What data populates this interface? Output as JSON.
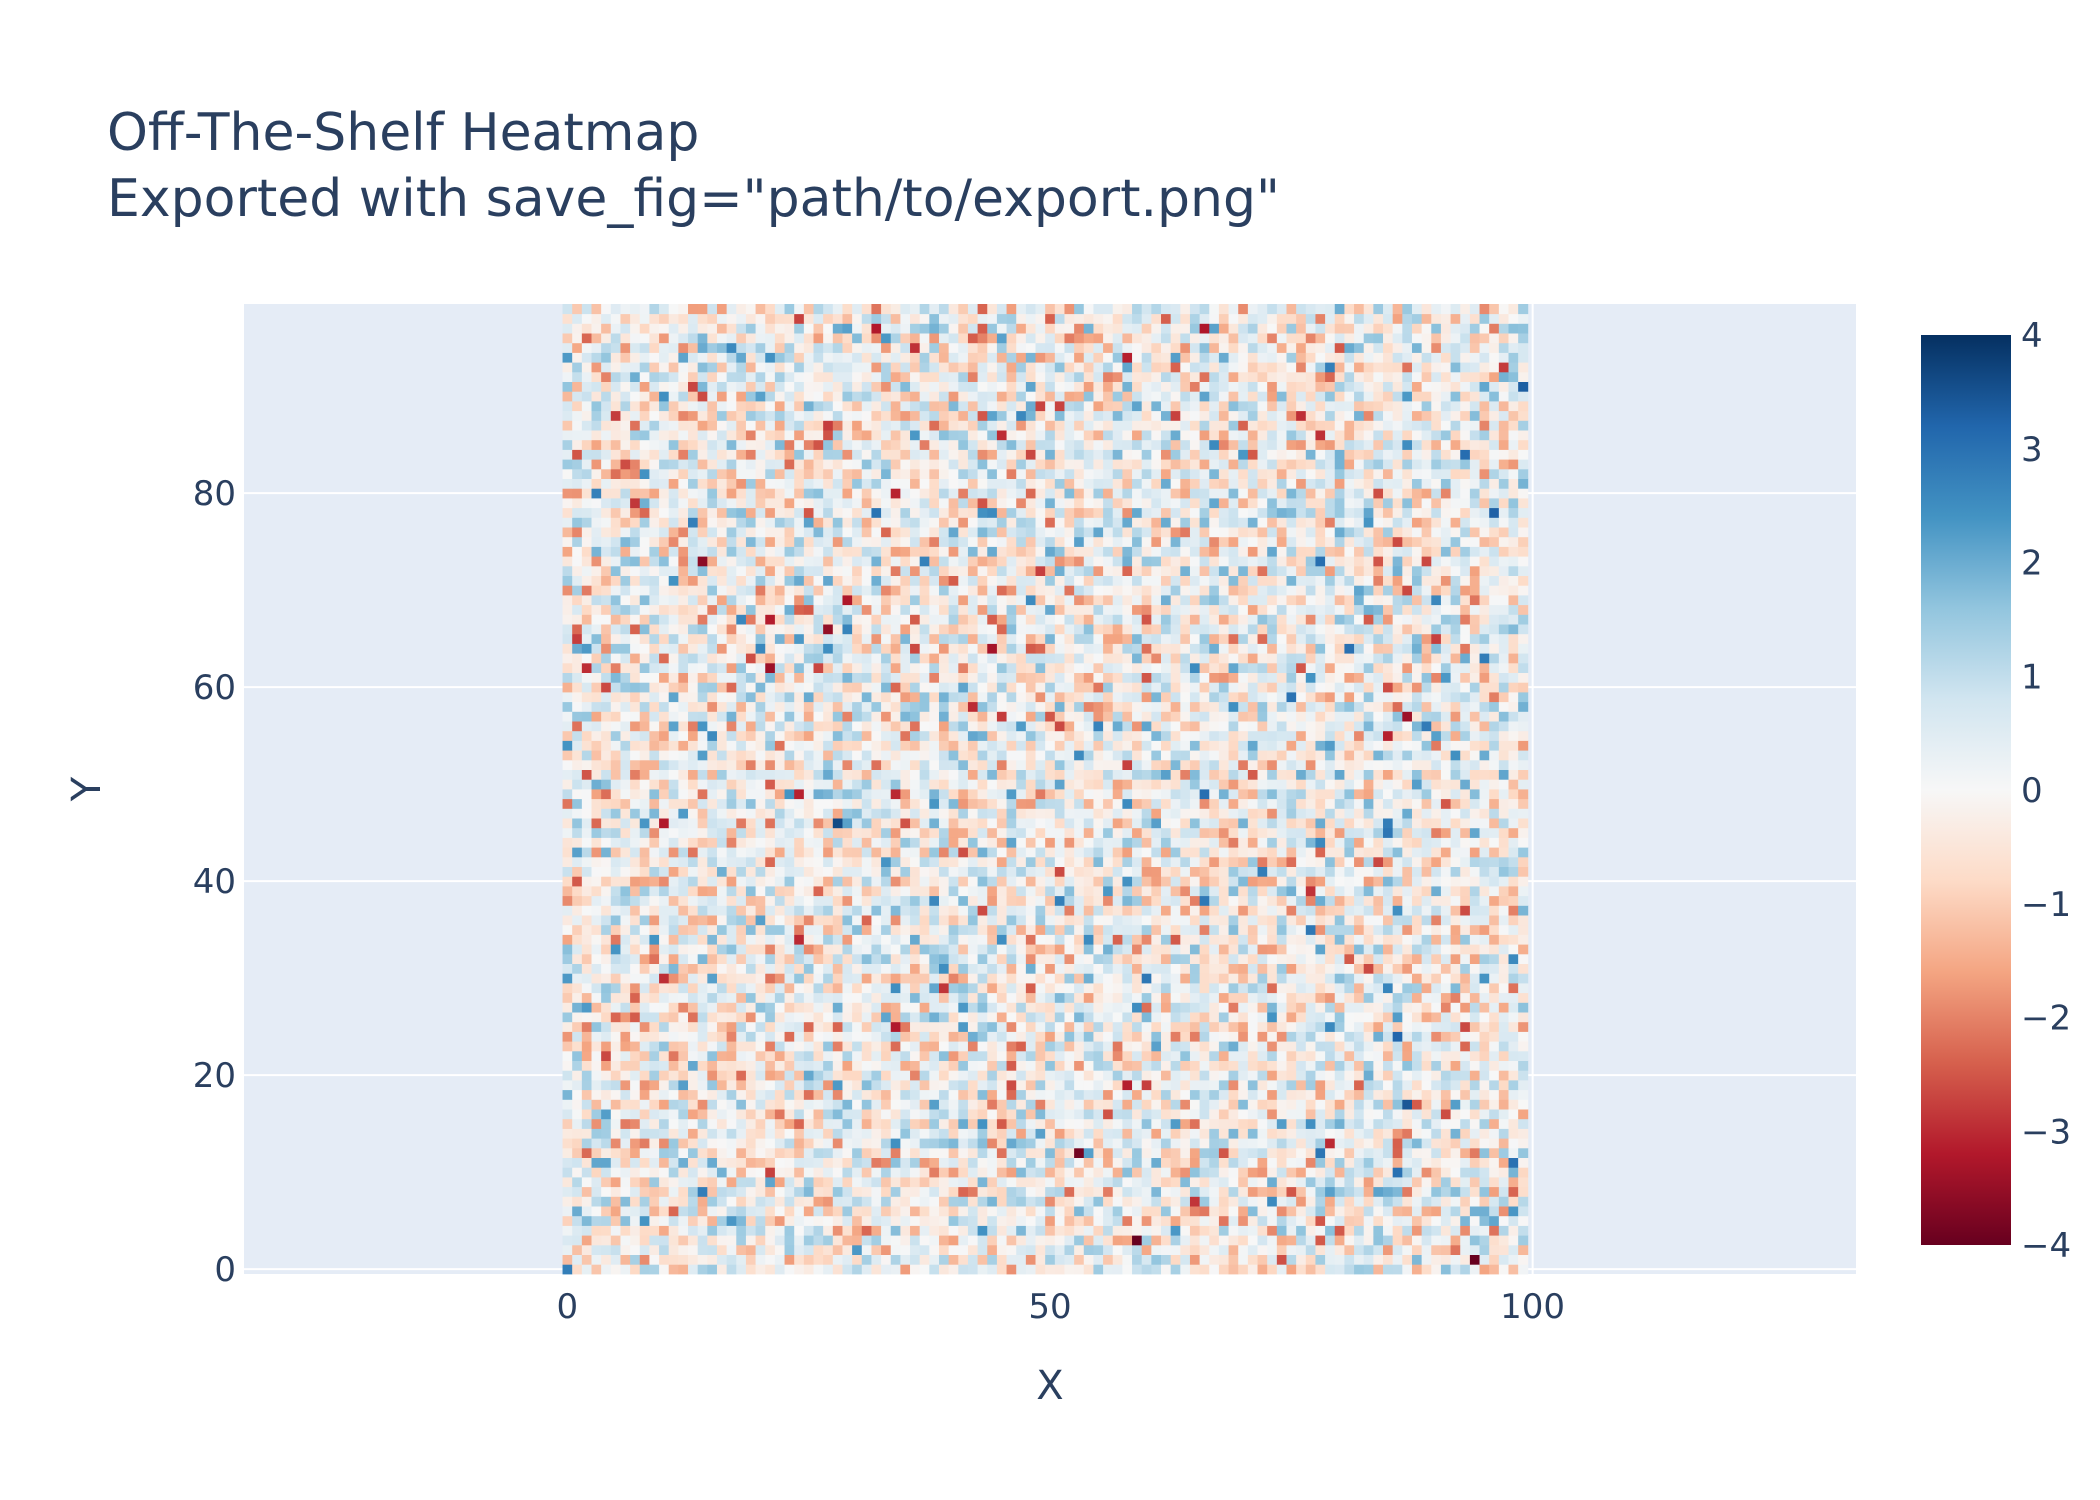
{
  "chart_data": {
    "type": "heatmap",
    "title": "Off-The-Shelf Heatmap",
    "subtitle": "Exported with save_fig=\"path/to/export.png\"",
    "xlabel": "X",
    "ylabel": "Y",
    "grid": true,
    "x_range": [
      -33.5,
      133.5
    ],
    "y_range": [
      -0.5,
      99.5
    ],
    "x_ticks": [
      0,
      50,
      100
    ],
    "y_ticks": [
      0,
      20,
      40,
      60,
      80
    ],
    "x_tick_labels": [
      "0",
      "50",
      "100"
    ],
    "y_tick_labels": [
      "0",
      "20",
      "40",
      "60",
      "80"
    ],
    "data_x_extent": [
      -0.5,
      99.5
    ],
    "data_y_extent": [
      -0.5,
      99.5
    ],
    "grid_size": [
      100,
      100
    ],
    "z_range": [
      -4,
      4
    ],
    "z_distribution": "random normal, mean 0, std 1",
    "colorscale": "RdBu",
    "colorscale_stops": [
      [
        0.0,
        "#67001f"
      ],
      [
        0.1,
        "#b2182b"
      ],
      [
        0.2,
        "#d6604d"
      ],
      [
        0.3,
        "#f4a582"
      ],
      [
        0.4,
        "#fddbc7"
      ],
      [
        0.5,
        "#f7f7f7"
      ],
      [
        0.6,
        "#d1e5f0"
      ],
      [
        0.7,
        "#92c5de"
      ],
      [
        0.8,
        "#4393c3"
      ],
      [
        0.9,
        "#2166ac"
      ],
      [
        1.0,
        "#053061"
      ]
    ],
    "colorbar_ticks": [
      4,
      3,
      2,
      1,
      0,
      -1,
      -2,
      -3,
      -4
    ],
    "colorbar_tick_labels": [
      "4",
      "3",
      "2",
      "1",
      "0",
      "−1",
      "−2",
      "−3",
      "−4"
    ],
    "legend": "colorbar-right"
  },
  "colors": {
    "plot_background": "#e5ecf6",
    "grid": "#ffffff",
    "text": "#2a3f5f"
  }
}
